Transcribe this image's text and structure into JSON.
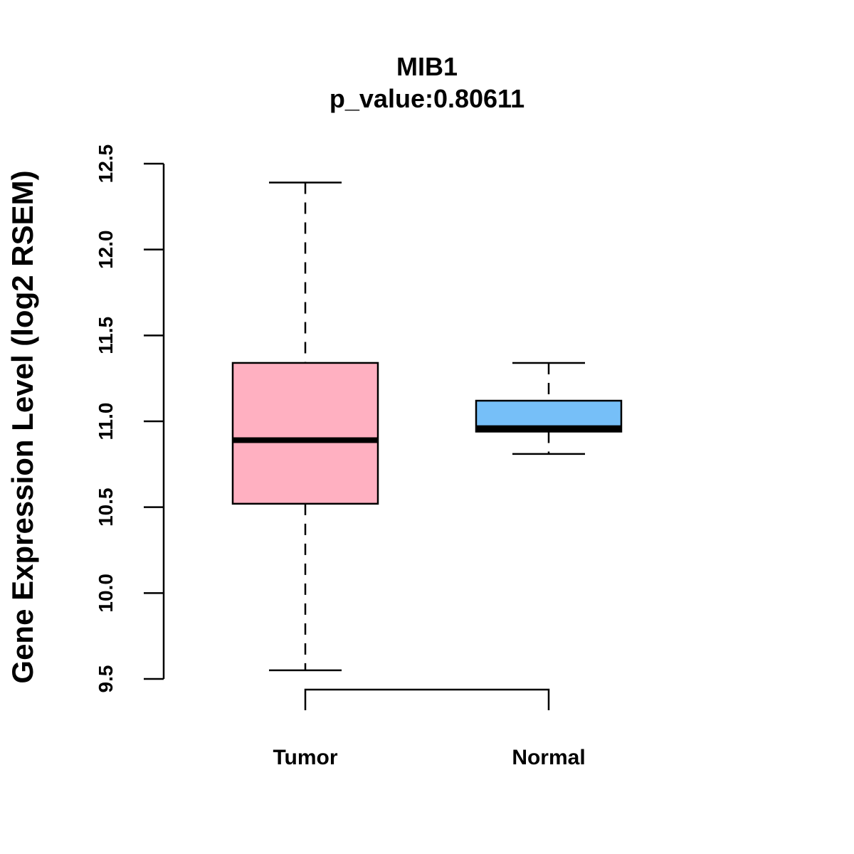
{
  "chart_data": {
    "type": "box",
    "title": "MIB1",
    "subtitle": "p_value:0.80611",
    "ylabel": "Gene Expression Level (log2 RSEM)",
    "ylim": [
      9.5,
      12.5
    ],
    "yticks": [
      "9.5",
      "10.0",
      "10.5",
      "11.0",
      "11.5",
      "12.0",
      "12.5"
    ],
    "categories": [
      "Tumor",
      "Normal"
    ],
    "series": [
      {
        "category": "Tumor",
        "whisker_low": 9.55,
        "q1": 10.52,
        "median": 10.89,
        "q3": 11.34,
        "whisker_high": 12.39,
        "color": "#FFB0C1"
      },
      {
        "category": "Normal",
        "whisker_low": 10.81,
        "q1": 10.94,
        "median": 10.96,
        "q3": 11.12,
        "whisker_high": 11.34,
        "color": "#76BFF8"
      }
    ],
    "grid": false,
    "legend": "none",
    "significance_bracket": true
  }
}
